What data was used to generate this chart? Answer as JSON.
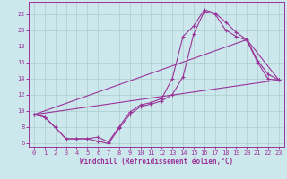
{
  "xlabel": "Windchill (Refroidissement éolien,°C)",
  "background_color": "#cce8ec",
  "grid_color": "#aacccc",
  "line_color": "#993399",
  "xlim": [
    -0.5,
    23.5
  ],
  "ylim": [
    5.5,
    23.5
  ],
  "xticks": [
    0,
    1,
    2,
    3,
    4,
    5,
    6,
    7,
    8,
    9,
    10,
    11,
    12,
    13,
    14,
    15,
    16,
    17,
    18,
    19,
    20,
    21,
    22,
    23
  ],
  "yticks": [
    6,
    8,
    10,
    12,
    14,
    16,
    18,
    20,
    22
  ],
  "series1_x": [
    0,
    1,
    2,
    3,
    4,
    5,
    6,
    7,
    8,
    9,
    10,
    11,
    12,
    13,
    14,
    15,
    16,
    17,
    18,
    19,
    20,
    21,
    22,
    23
  ],
  "series1_y": [
    9.5,
    9.2,
    7.9,
    6.5,
    6.5,
    6.5,
    6.7,
    6.1,
    8.0,
    9.8,
    10.7,
    11.0,
    11.5,
    14.0,
    19.2,
    20.5,
    22.5,
    22.1,
    21.0,
    19.7,
    18.8,
    16.2,
    14.5,
    13.8
  ],
  "series2_x": [
    0,
    1,
    2,
    3,
    4,
    5,
    6,
    7,
    8,
    9,
    10,
    11,
    12,
    13,
    14,
    15,
    16,
    17,
    18,
    19,
    20,
    21,
    22,
    23
  ],
  "series2_y": [
    9.5,
    9.2,
    7.9,
    6.5,
    6.5,
    6.5,
    6.2,
    5.9,
    7.8,
    9.5,
    10.5,
    10.8,
    11.2,
    12.0,
    14.2,
    19.5,
    22.3,
    22.0,
    20.0,
    19.2,
    18.7,
    16.0,
    13.9,
    13.8
  ],
  "line1_x": [
    0,
    23
  ],
  "line1_y": [
    9.5,
    13.8
  ],
  "line2_x": [
    0,
    20,
    23
  ],
  "line2_y": [
    9.5,
    18.8,
    13.8
  ]
}
